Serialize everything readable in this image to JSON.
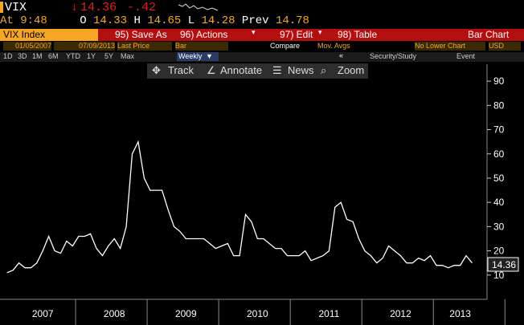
{
  "header": {
    "ticker": "VIX",
    "last": "14.36",
    "change": "-.42",
    "time": "At 9:48",
    "open_label": "O",
    "open": "14.33",
    "high_label": "H",
    "high": "14.65",
    "low_label": "L",
    "low": "14.28",
    "prev_label": "Prev",
    "prev": "14.78"
  },
  "menu": {
    "security": "VIX Index",
    "items": [
      "95) Save As",
      "96) Actions",
      "97) Edit",
      "98) Table"
    ],
    "view": "Bar Chart"
  },
  "controls": {
    "start": "01/05/2007",
    "end": "07/09/2013",
    "field": "Last Price",
    "style": "Bar",
    "compare": "Compare",
    "mov_avgs": "Mov. Avgs",
    "lower": "No Lower Chart",
    "currency": "USD",
    "ranges": [
      "1D",
      "3D",
      "1M",
      "6M",
      "YTD",
      "1Y",
      "5Y",
      "Max"
    ],
    "period": "Weekly",
    "study": "Security/Study",
    "event": "Event"
  },
  "toolbar": [
    "Track",
    "Annotate",
    "News",
    "Zoom"
  ],
  "chart_data": {
    "type": "line",
    "color": "#ffffff",
    "grid": false,
    "categories": [
      null,
      null,
      null,
      null,
      null,
      null,
      "2007",
      null,
      null,
      null,
      null,
      null,
      null,
      null,
      null,
      null,
      null,
      null,
      "2008",
      null,
      null,
      null,
      null,
      null,
      null,
      null,
      null,
      null,
      null,
      null,
      "2009",
      null,
      null,
      null,
      null,
      null,
      null,
      null,
      null,
      null,
      null,
      null,
      "2010",
      null,
      null,
      null,
      null,
      null,
      null,
      null,
      null,
      null,
      null,
      null,
      "2011",
      null,
      null,
      null,
      null,
      null,
      null,
      null,
      null,
      null,
      null,
      null,
      "2012",
      null,
      null,
      null,
      null,
      null,
      null,
      null,
      null,
      null,
      "2013",
      null,
      null
    ],
    "values": [
      11,
      12,
      15,
      13,
      13,
      15,
      20,
      26,
      20,
      19,
      24,
      22,
      26,
      26,
      27,
      21,
      18,
      22,
      25,
      21,
      30,
      60,
      65,
      50,
      45,
      45,
      45,
      37,
      30,
      28,
      25,
      25,
      25,
      25,
      23,
      21,
      22,
      23,
      18,
      18,
      35,
      32,
      25,
      25,
      23,
      21,
      21,
      18,
      18,
      18,
      20,
      16,
      17,
      18,
      20,
      38,
      40,
      33,
      32,
      25,
      20,
      18,
      15,
      17,
      22,
      20,
      18,
      15,
      15,
      17,
      16,
      18,
      14,
      14,
      13,
      14,
      14,
      18,
      15
    ],
    "ylim": [
      0,
      97
    ],
    "yticks": [
      10,
      20,
      30,
      40,
      50,
      60,
      70,
      80,
      90
    ]
  }
}
